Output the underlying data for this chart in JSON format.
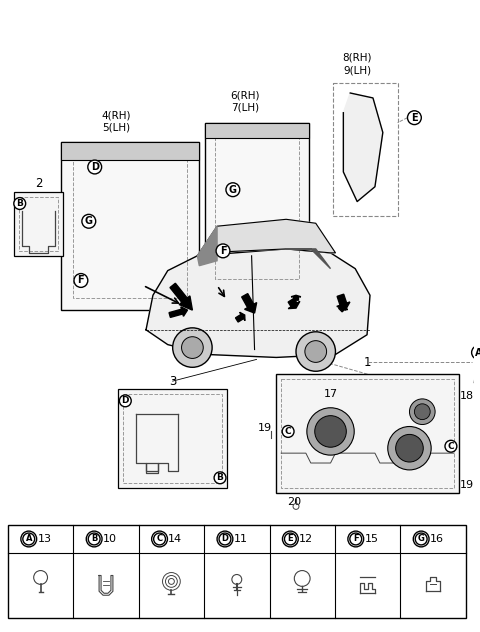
{
  "background_color": "#ffffff",
  "line_color": "#000000",
  "fig_width": 4.8,
  "fig_height": 6.32,
  "dpi": 100,
  "legend_entries": [
    {
      "letter": "A",
      "number": "13"
    },
    {
      "letter": "B",
      "number": "10"
    },
    {
      "letter": "C",
      "number": "14"
    },
    {
      "letter": "D",
      "number": "11"
    },
    {
      "letter": "E",
      "number": "12"
    },
    {
      "letter": "F",
      "number": "15"
    },
    {
      "letter": "G",
      "number": "16"
    }
  ]
}
